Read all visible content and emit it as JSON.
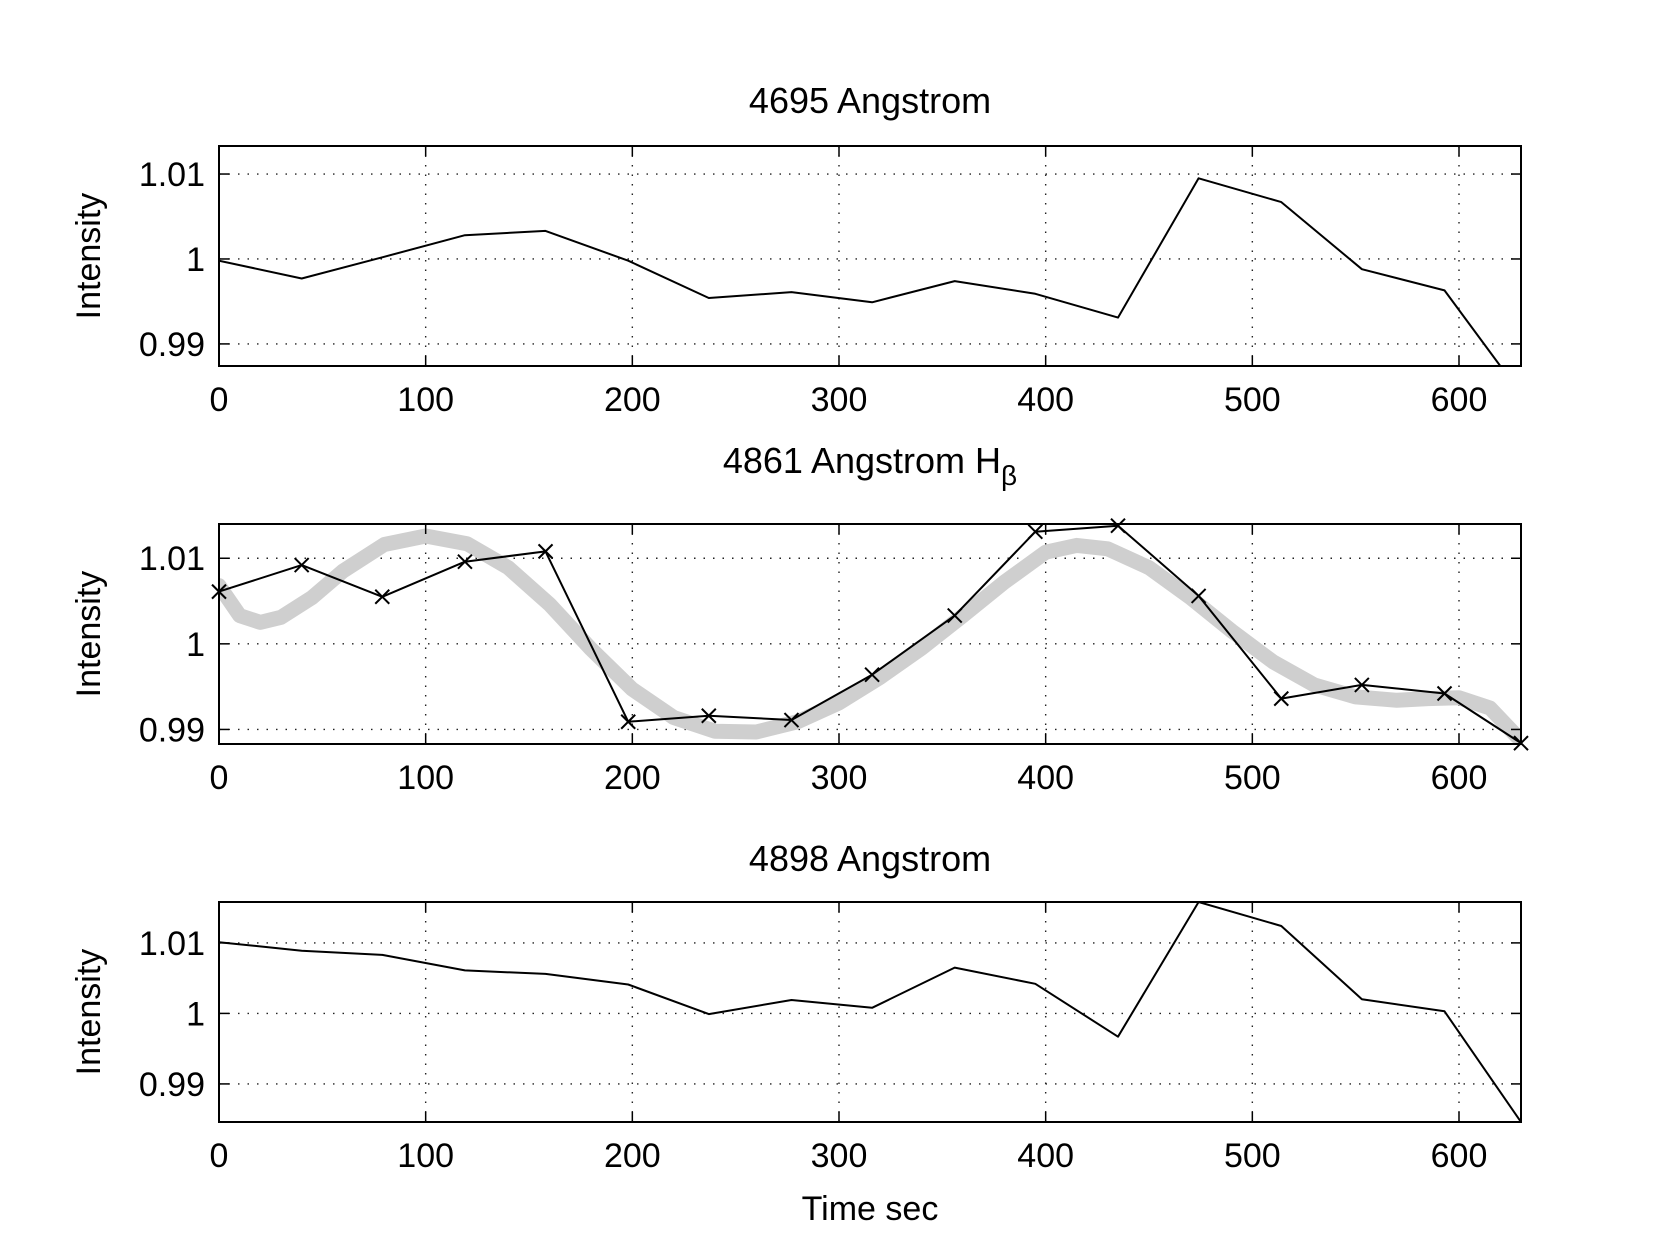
{
  "chart_data": [
    {
      "type": "line",
      "title": "4695 Angstrom",
      "title_subscript": "",
      "xlabel": "",
      "ylabel": "Intensity",
      "xlim": [
        0,
        630
      ],
      "ylim": [
        0.9874,
        1.0133
      ],
      "xticks": [
        0,
        100,
        200,
        300,
        400,
        500,
        600
      ],
      "xtick_labels": [
        "0",
        "100",
        "200",
        "300",
        "400",
        "500",
        "600"
      ],
      "yticks": [
        0.99,
        1,
        1.01
      ],
      "ytick_labels": [
        "0.99",
        "1",
        "1.01"
      ],
      "grid": true,
      "series": [
        {
          "marker": "none",
          "x": [
            0,
            40,
            79,
            119,
            158,
            198,
            237,
            277,
            316,
            356,
            395,
            435,
            474,
            514,
            553,
            593,
            620
          ],
          "y": [
            0.9998,
            0.9977,
            1.0002,
            1.0028,
            1.0033,
            0.9998,
            0.9954,
            0.9961,
            0.9949,
            0.9974,
            0.9959,
            0.9931,
            1.0095,
            1.0067,
            0.9988,
            0.9963,
            0.9874
          ]
        }
      ]
    },
    {
      "type": "line",
      "title": "4861 Angstrom  H",
      "title_subscript": "β",
      "xlabel": "",
      "ylabel": "Intensity",
      "xlim": [
        0,
        630
      ],
      "ylim": [
        0.9883,
        1.014
      ],
      "xticks": [
        0,
        100,
        200,
        300,
        400,
        500,
        600
      ],
      "xtick_labels": [
        "0",
        "100",
        "200",
        "300",
        "400",
        "500",
        "600"
      ],
      "yticks": [
        0.99,
        1,
        1.01
      ],
      "ytick_labels": [
        "0.99",
        "1",
        "1.01"
      ],
      "grid": true,
      "series": [
        {
          "marker": "x",
          "x": [
            0,
            40,
            79,
            119,
            158,
            198,
            237,
            277,
            316,
            356,
            395,
            435,
            474,
            514,
            553,
            593,
            630
          ],
          "y": [
            1.0061,
            1.0092,
            1.0055,
            1.0096,
            1.0108,
            0.9909,
            0.9916,
            0.9911,
            0.9964,
            1.0033,
            1.0131,
            1.0138,
            1.0056,
            0.9936,
            0.9952,
            0.9942,
            0.9884
          ]
        },
        {
          "marker": "none",
          "style": "thick-gray",
          "x": [
            0,
            10,
            20,
            30,
            45,
            60,
            80,
            100,
            120,
            140,
            160,
            180,
            200,
            220,
            240,
            260,
            280,
            300,
            320,
            340,
            360,
            380,
            400,
            415,
            430,
            450,
            470,
            490,
            510,
            530,
            550,
            570,
            585,
            600,
            615,
            628
          ],
          "y": [
            1.0068,
            1.0033,
            1.0025,
            1.0031,
            1.0054,
            1.0085,
            1.0116,
            1.0126,
            1.0117,
            1.0089,
            1.0046,
            0.9994,
            0.9947,
            0.9914,
            0.9898,
            0.9897,
            0.9909,
            0.9931,
            0.9961,
            0.9995,
            1.0033,
            1.0072,
            1.0107,
            1.0115,
            1.0111,
            1.0089,
            1.0054,
            1.0015,
            0.9979,
            0.9952,
            0.9938,
            0.9934,
            0.9936,
            0.9937,
            0.9925,
            0.9892
          ]
        }
      ]
    },
    {
      "type": "line",
      "title": "4898 Angstrom",
      "title_subscript": "",
      "xlabel": "Time  sec",
      "ylabel": "Intensity",
      "xlim": [
        0,
        630
      ],
      "ylim": [
        0.9846,
        1.0158
      ],
      "xticks": [
        0,
        100,
        200,
        300,
        400,
        500,
        600
      ],
      "xtick_labels": [
        "0",
        "100",
        "200",
        "300",
        "400",
        "500",
        "600"
      ],
      "yticks": [
        0.99,
        1,
        1.01
      ],
      "ytick_labels": [
        "0.99",
        "1",
        "1.01"
      ],
      "grid": true,
      "series": [
        {
          "marker": "none",
          "x": [
            0,
            40,
            79,
            119,
            158,
            198,
            237,
            277,
            316,
            356,
            395,
            435,
            474,
            514,
            553,
            593,
            630
          ],
          "y": [
            1.0101,
            1.0089,
            1.0083,
            1.0061,
            1.0056,
            1.0041,
            0.9999,
            1.0019,
            1.0008,
            1.0065,
            1.0042,
            0.9967,
            1.0158,
            1.0124,
            1.002,
            1.0003,
            0.9846
          ]
        }
      ]
    }
  ]
}
